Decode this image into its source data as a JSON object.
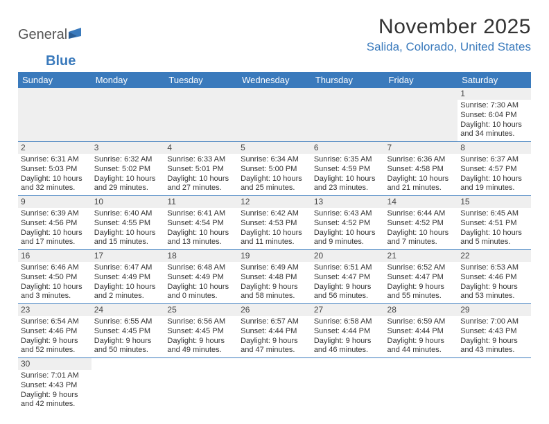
{
  "logo": {
    "text1": "General",
    "text2": "Blue"
  },
  "title": "November 2025",
  "location": "Salida, Colorado, United States",
  "header_bg": "#3a7abc",
  "weekdays": [
    "Sunday",
    "Monday",
    "Tuesday",
    "Wednesday",
    "Thursday",
    "Friday",
    "Saturday"
  ],
  "rows": [
    [
      null,
      null,
      null,
      null,
      null,
      null,
      {
        "n": "1",
        "sr": "Sunrise: 7:30 AM",
        "ss": "Sunset: 6:04 PM",
        "dl": "Daylight: 10 hours and 34 minutes."
      }
    ],
    [
      {
        "n": "2",
        "sr": "Sunrise: 6:31 AM",
        "ss": "Sunset: 5:03 PM",
        "dl": "Daylight: 10 hours and 32 minutes."
      },
      {
        "n": "3",
        "sr": "Sunrise: 6:32 AM",
        "ss": "Sunset: 5:02 PM",
        "dl": "Daylight: 10 hours and 29 minutes."
      },
      {
        "n": "4",
        "sr": "Sunrise: 6:33 AM",
        "ss": "Sunset: 5:01 PM",
        "dl": "Daylight: 10 hours and 27 minutes."
      },
      {
        "n": "5",
        "sr": "Sunrise: 6:34 AM",
        "ss": "Sunset: 5:00 PM",
        "dl": "Daylight: 10 hours and 25 minutes."
      },
      {
        "n": "6",
        "sr": "Sunrise: 6:35 AM",
        "ss": "Sunset: 4:59 PM",
        "dl": "Daylight: 10 hours and 23 minutes."
      },
      {
        "n": "7",
        "sr": "Sunrise: 6:36 AM",
        "ss": "Sunset: 4:58 PM",
        "dl": "Daylight: 10 hours and 21 minutes."
      },
      {
        "n": "8",
        "sr": "Sunrise: 6:37 AM",
        "ss": "Sunset: 4:57 PM",
        "dl": "Daylight: 10 hours and 19 minutes."
      }
    ],
    [
      {
        "n": "9",
        "sr": "Sunrise: 6:39 AM",
        "ss": "Sunset: 4:56 PM",
        "dl": "Daylight: 10 hours and 17 minutes."
      },
      {
        "n": "10",
        "sr": "Sunrise: 6:40 AM",
        "ss": "Sunset: 4:55 PM",
        "dl": "Daylight: 10 hours and 15 minutes."
      },
      {
        "n": "11",
        "sr": "Sunrise: 6:41 AM",
        "ss": "Sunset: 4:54 PM",
        "dl": "Daylight: 10 hours and 13 minutes."
      },
      {
        "n": "12",
        "sr": "Sunrise: 6:42 AM",
        "ss": "Sunset: 4:53 PM",
        "dl": "Daylight: 10 hours and 11 minutes."
      },
      {
        "n": "13",
        "sr": "Sunrise: 6:43 AM",
        "ss": "Sunset: 4:52 PM",
        "dl": "Daylight: 10 hours and 9 minutes."
      },
      {
        "n": "14",
        "sr": "Sunrise: 6:44 AM",
        "ss": "Sunset: 4:52 PM",
        "dl": "Daylight: 10 hours and 7 minutes."
      },
      {
        "n": "15",
        "sr": "Sunrise: 6:45 AM",
        "ss": "Sunset: 4:51 PM",
        "dl": "Daylight: 10 hours and 5 minutes."
      }
    ],
    [
      {
        "n": "16",
        "sr": "Sunrise: 6:46 AM",
        "ss": "Sunset: 4:50 PM",
        "dl": "Daylight: 10 hours and 3 minutes."
      },
      {
        "n": "17",
        "sr": "Sunrise: 6:47 AM",
        "ss": "Sunset: 4:49 PM",
        "dl": "Daylight: 10 hours and 2 minutes."
      },
      {
        "n": "18",
        "sr": "Sunrise: 6:48 AM",
        "ss": "Sunset: 4:49 PM",
        "dl": "Daylight: 10 hours and 0 minutes."
      },
      {
        "n": "19",
        "sr": "Sunrise: 6:49 AM",
        "ss": "Sunset: 4:48 PM",
        "dl": "Daylight: 9 hours and 58 minutes."
      },
      {
        "n": "20",
        "sr": "Sunrise: 6:51 AM",
        "ss": "Sunset: 4:47 PM",
        "dl": "Daylight: 9 hours and 56 minutes."
      },
      {
        "n": "21",
        "sr": "Sunrise: 6:52 AM",
        "ss": "Sunset: 4:47 PM",
        "dl": "Daylight: 9 hours and 55 minutes."
      },
      {
        "n": "22",
        "sr": "Sunrise: 6:53 AM",
        "ss": "Sunset: 4:46 PM",
        "dl": "Daylight: 9 hours and 53 minutes."
      }
    ],
    [
      {
        "n": "23",
        "sr": "Sunrise: 6:54 AM",
        "ss": "Sunset: 4:46 PM",
        "dl": "Daylight: 9 hours and 52 minutes."
      },
      {
        "n": "24",
        "sr": "Sunrise: 6:55 AM",
        "ss": "Sunset: 4:45 PM",
        "dl": "Daylight: 9 hours and 50 minutes."
      },
      {
        "n": "25",
        "sr": "Sunrise: 6:56 AM",
        "ss": "Sunset: 4:45 PM",
        "dl": "Daylight: 9 hours and 49 minutes."
      },
      {
        "n": "26",
        "sr": "Sunrise: 6:57 AM",
        "ss": "Sunset: 4:44 PM",
        "dl": "Daylight: 9 hours and 47 minutes."
      },
      {
        "n": "27",
        "sr": "Sunrise: 6:58 AM",
        "ss": "Sunset: 4:44 PM",
        "dl": "Daylight: 9 hours and 46 minutes."
      },
      {
        "n": "28",
        "sr": "Sunrise: 6:59 AM",
        "ss": "Sunset: 4:44 PM",
        "dl": "Daylight: 9 hours and 44 minutes."
      },
      {
        "n": "29",
        "sr": "Sunrise: 7:00 AM",
        "ss": "Sunset: 4:43 PM",
        "dl": "Daylight: 9 hours and 43 minutes."
      }
    ],
    [
      {
        "n": "30",
        "sr": "Sunrise: 7:01 AM",
        "ss": "Sunset: 4:43 PM",
        "dl": "Daylight: 9 hours and 42 minutes."
      },
      null,
      null,
      null,
      null,
      null,
      null
    ]
  ]
}
